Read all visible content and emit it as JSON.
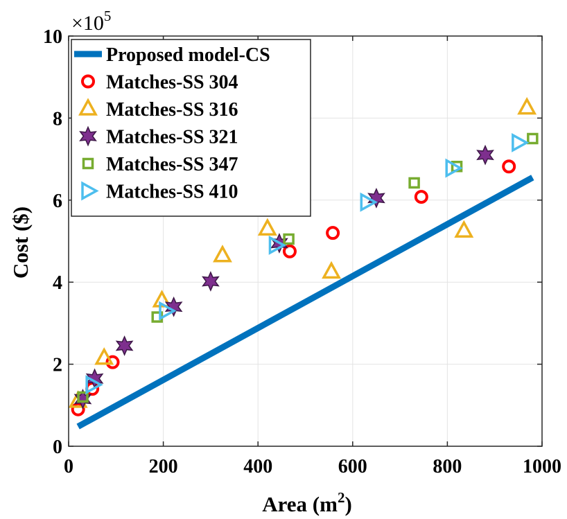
{
  "chart_data": {
    "type": "scatter",
    "title": "",
    "xlabel": "Area (m",
    "xlabel_sup": "2",
    "xlabel_close": ")",
    "ylabel": "Cost ($)",
    "y_multiplier": "×10",
    "y_multiplier_exp": "5",
    "xlim": [
      0,
      1000
    ],
    "ylim": [
      0,
      10
    ],
    "x_ticks": [
      0,
      200,
      400,
      600,
      800,
      1000
    ],
    "y_ticks": [
      0,
      2,
      4,
      6,
      8,
      10
    ],
    "x_tick_labels": [
      "0",
      "200",
      "400",
      "600",
      "800",
      "1000"
    ],
    "y_tick_labels": [
      "0",
      "2",
      "4",
      "6",
      "8",
      "10"
    ],
    "grid": true,
    "legend_position": "top-left",
    "series": [
      {
        "name": "Proposed model-CS",
        "kind": "line",
        "color": "#0072BD",
        "x": [
          20,
          980
        ],
        "y": [
          0.48,
          6.55
        ]
      },
      {
        "name": "Matches-SS 304",
        "kind": "marker",
        "marker": "circle",
        "color": "#FF0000",
        "x": [
          20,
          50,
          93,
          467,
          558,
          745,
          930
        ],
        "y": [
          0.9,
          1.4,
          2.05,
          4.75,
          5.2,
          6.08,
          6.82
        ]
      },
      {
        "name": "Matches-SS 316",
        "kind": "marker",
        "marker": "triangle-up",
        "color": "#EDB120",
        "x": [
          20,
          75,
          197,
          325,
          420,
          555,
          835,
          968
        ],
        "y": [
          1.1,
          2.15,
          3.55,
          4.65,
          5.3,
          4.25,
          5.25,
          8.25
        ]
      },
      {
        "name": "Matches-SS 321",
        "kind": "marker",
        "marker": "hexagram",
        "color": "#7E2F8E",
        "x": [
          30,
          55,
          118,
          222,
          300,
          445,
          650,
          880
        ],
        "y": [
          1.15,
          1.65,
          2.45,
          3.4,
          4.02,
          4.95,
          6.05,
          7.1
        ]
      },
      {
        "name": "Matches-SS 347",
        "kind": "marker",
        "marker": "square",
        "color": "#77AC30",
        "x": [
          30,
          187,
          465,
          730,
          820,
          980
        ],
        "y": [
          1.2,
          3.15,
          5.05,
          6.42,
          6.82,
          7.5
        ]
      },
      {
        "name": "Matches-SS 410",
        "kind": "marker",
        "marker": "triangle-right",
        "color": "#4DBEEE",
        "x": [
          50,
          205,
          437,
          630,
          810,
          950
        ],
        "y": [
          1.5,
          3.3,
          4.9,
          5.95,
          6.78,
          7.4
        ]
      }
    ]
  }
}
